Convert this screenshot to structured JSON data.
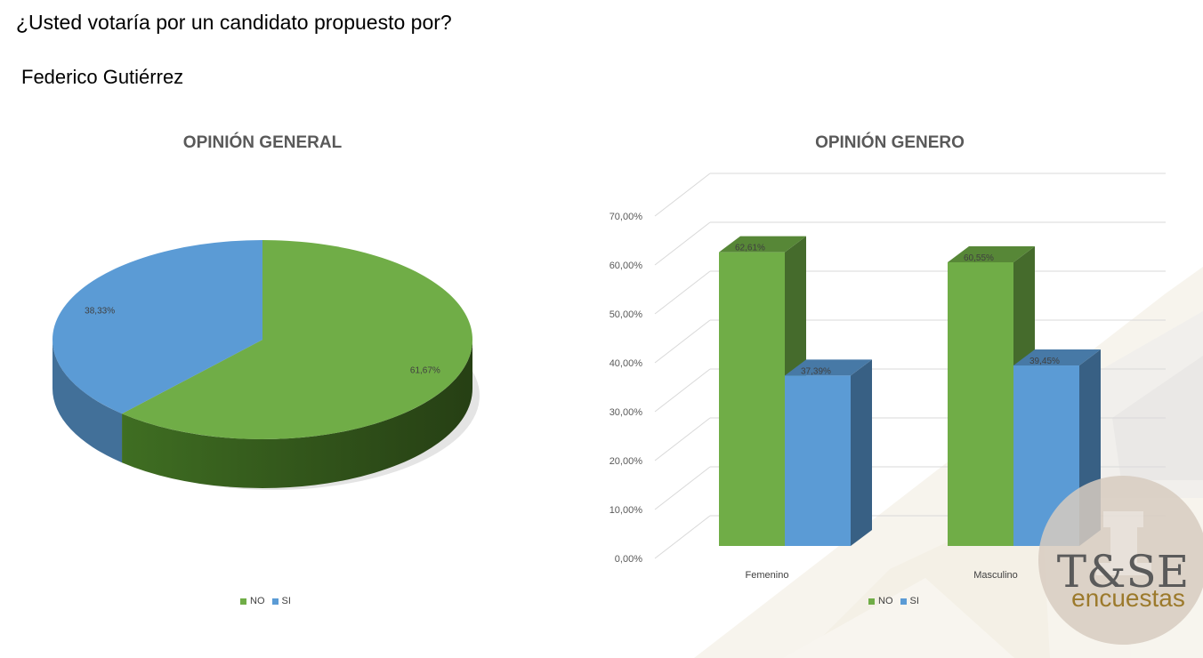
{
  "header": {
    "question": "¿Usted votaría por un candidato propuesto por?",
    "candidate": "Federico Gutiérrez"
  },
  "logo": {
    "line1": "T&SE",
    "line2": "encuestas"
  },
  "colors": {
    "no": "#70ad47",
    "si": "#5b9bd5",
    "no_dark": "#4a7a2e",
    "si_dark": "#3a6e9e"
  },
  "chart_data": [
    {
      "type": "pie",
      "title": "OPINIÓN GENERAL",
      "categories": [
        "NO",
        "SI"
      ],
      "values": [
        61.67,
        38.33
      ],
      "labels": [
        "61,67%",
        "38,33%"
      ],
      "legend": [
        "NO",
        "SI"
      ],
      "legend_position": "bottom"
    },
    {
      "type": "bar",
      "title": "OPINIÓN GENERO",
      "categories": [
        "Femenino",
        "Masculino"
      ],
      "series": [
        {
          "name": "NO",
          "values": [
            62.61,
            60.55
          ],
          "labels": [
            "62,61%",
            "60,55%"
          ]
        },
        {
          "name": "SI",
          "values": [
            37.39,
            39.45
          ],
          "labels": [
            "37,39%",
            "39,45%"
          ]
        }
      ],
      "ylim": [
        0,
        70
      ],
      "yticks": [
        "0,00%",
        "10,00%",
        "20,00%",
        "30,00%",
        "40,00%",
        "50,00%",
        "60,00%",
        "70,00%"
      ],
      "grid": true,
      "legend_position": "bottom"
    }
  ]
}
